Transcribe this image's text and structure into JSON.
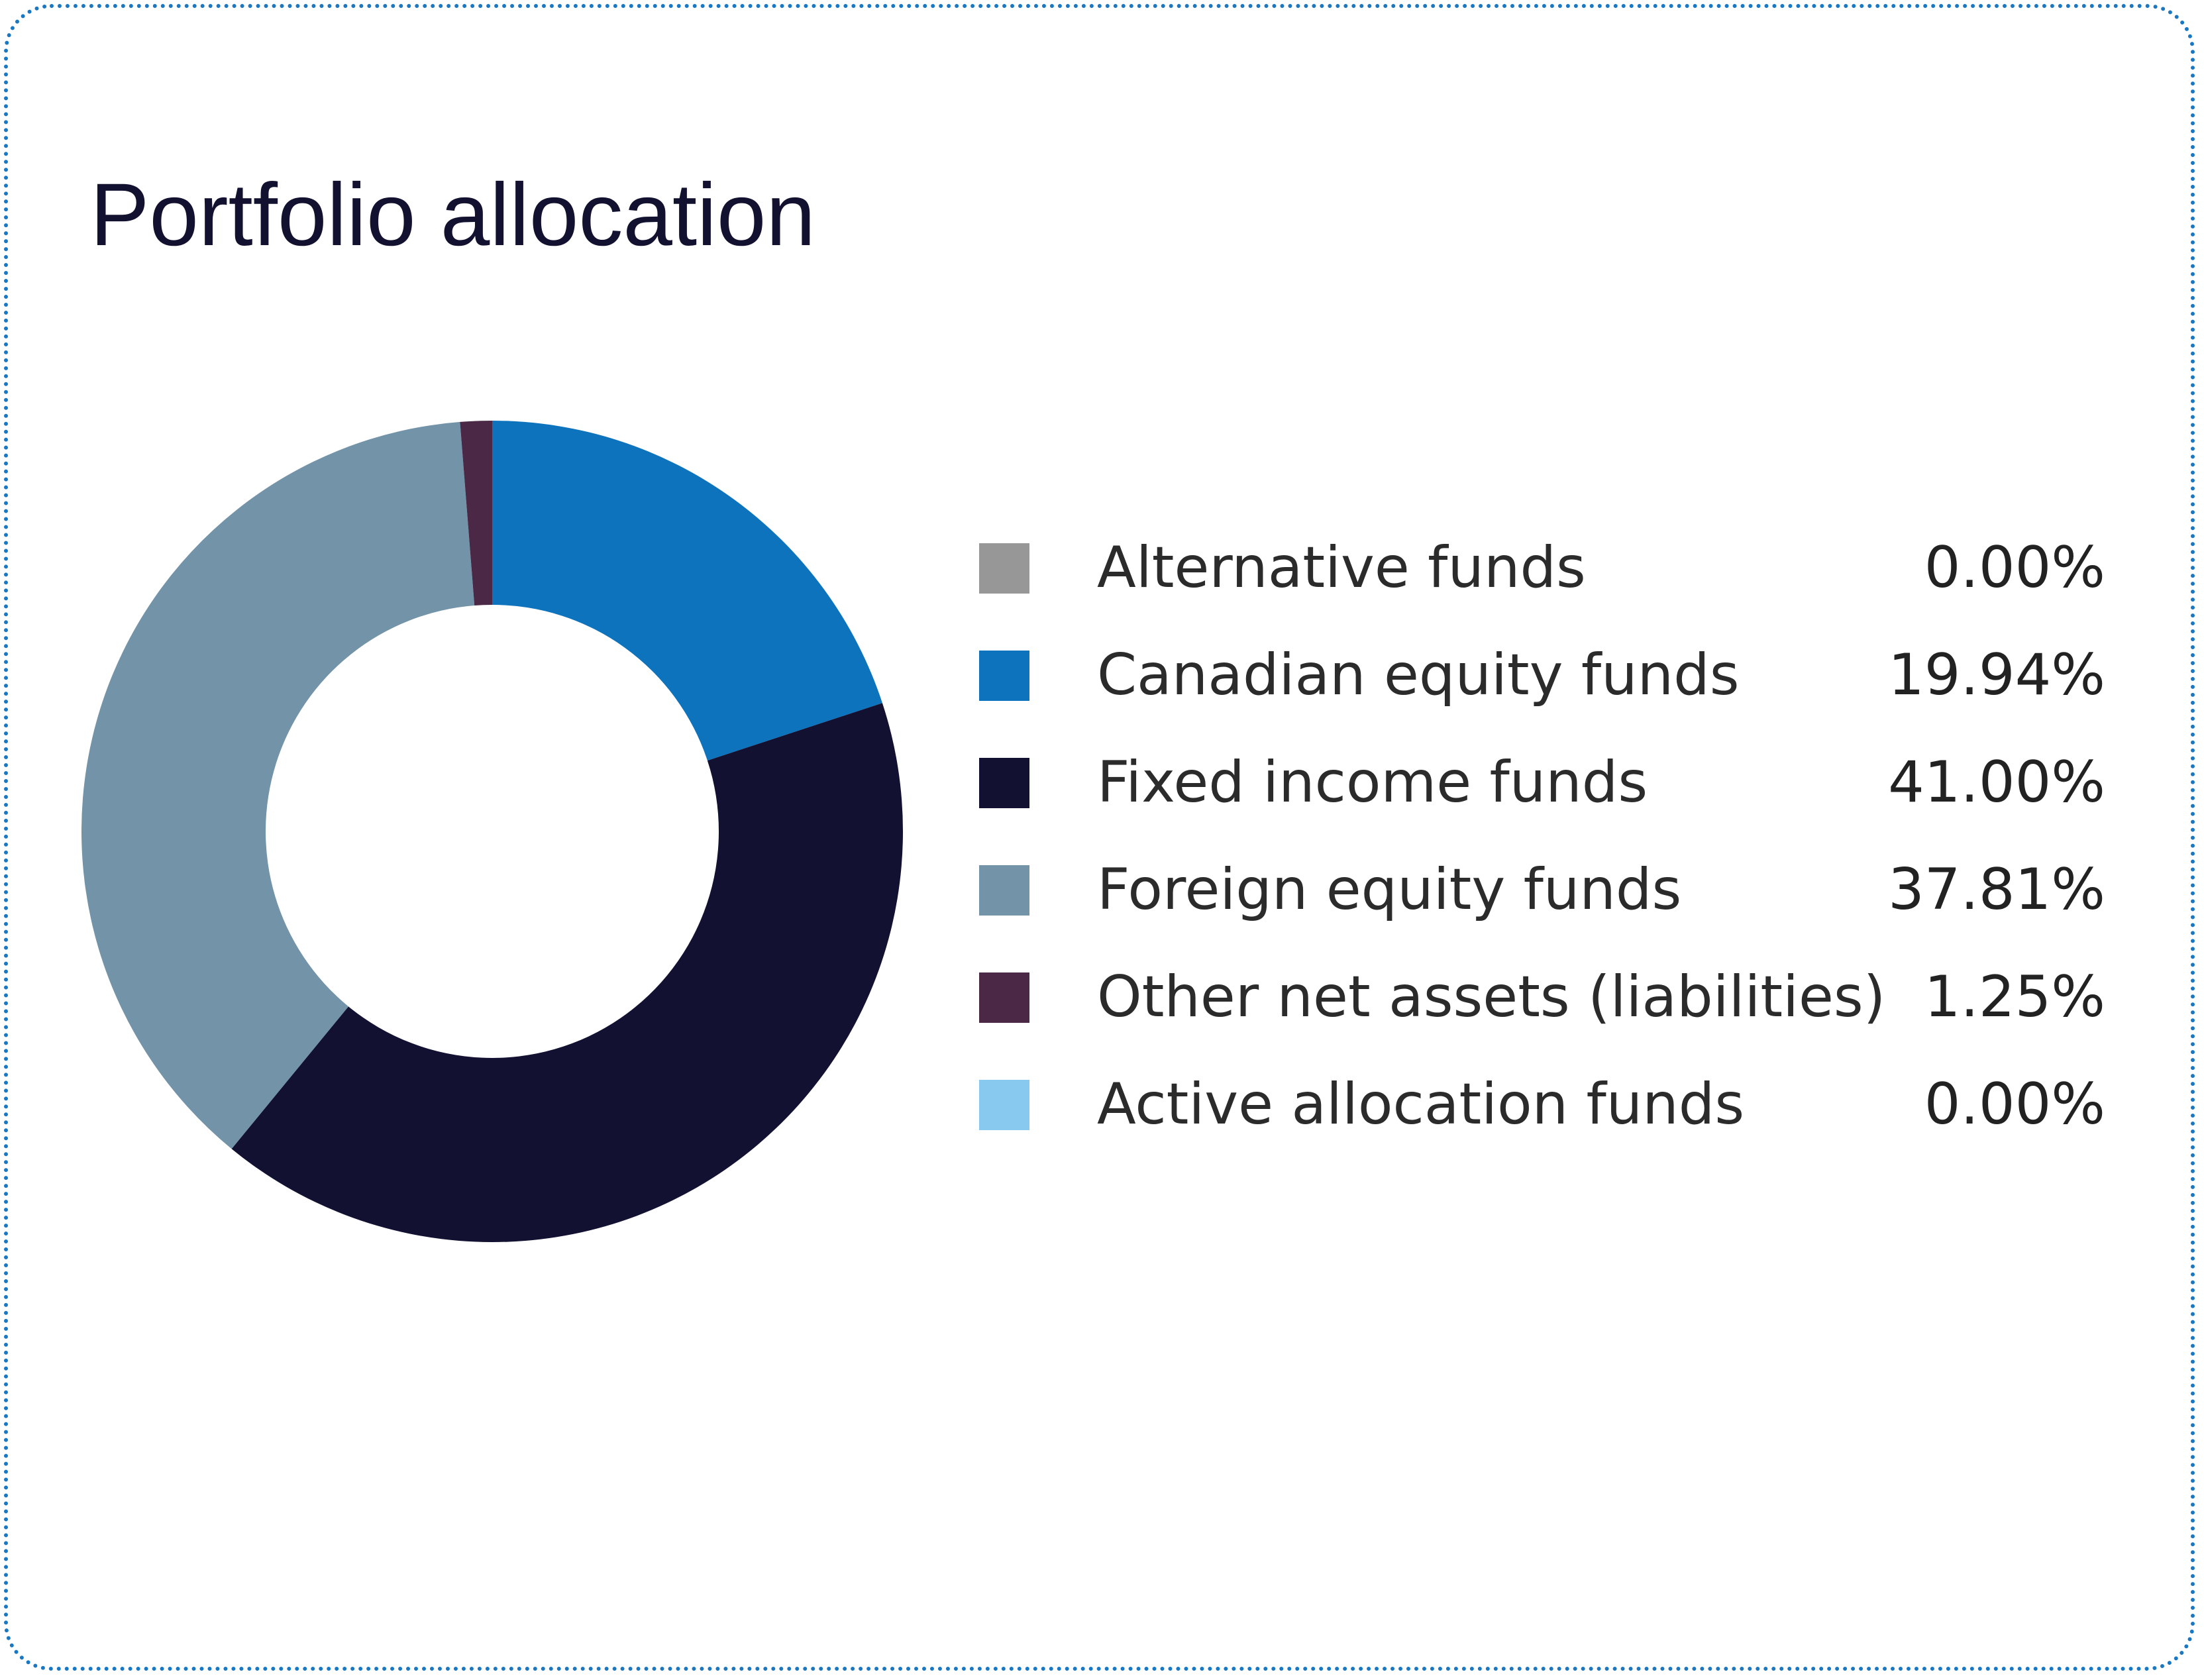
{
  "title": "Portfolio allocation",
  "chart_data": {
    "type": "pie",
    "title": "Portfolio allocation",
    "donut": true,
    "unit": "%",
    "legend_position": "right",
    "categories": [
      "Alternative funds",
      "Canadian equity funds",
      "Fixed income funds",
      "Foreign equity funds",
      "Other net assets (liabilities)",
      "Active allocation funds"
    ],
    "values": [
      0.0,
      19.94,
      41.0,
      37.81,
      1.25,
      0.0
    ],
    "value_labels": [
      "0.00%",
      "19.94%",
      "41.00%",
      "37.81%",
      "1.25%",
      "0.00%"
    ],
    "colors": [
      "#979797",
      "#0e73bd",
      "#121132",
      "#7293a8",
      "#4b2946",
      "#88c9f0"
    ]
  }
}
